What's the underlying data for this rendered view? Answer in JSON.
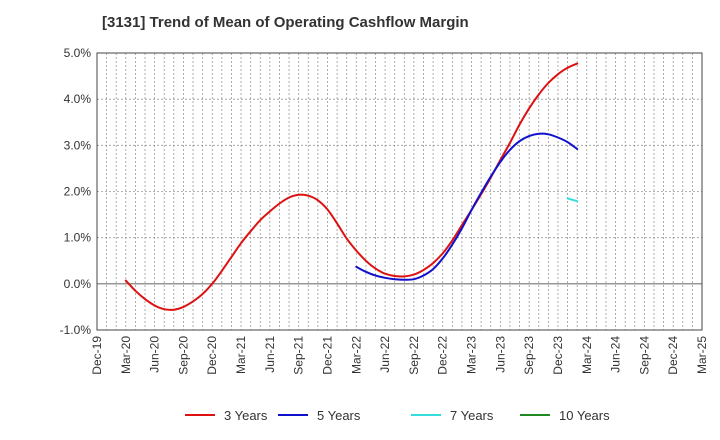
{
  "chart_data": {
    "type": "line",
    "title": "[3131]  Trend of Mean of Operating Cashflow Margin",
    "xlabel": "",
    "ylabel": "",
    "ylim": [
      -1.0,
      5.0
    ],
    "yticks": [
      "5.0%",
      "4.0%",
      "3.0%",
      "2.0%",
      "1.0%",
      "0.0%",
      "-1.0%"
    ],
    "ytick_values": [
      5,
      4,
      3,
      2,
      1,
      0,
      -1
    ],
    "categories": [
      "Dec-19",
      "Mar-20",
      "Jun-20",
      "Sep-20",
      "Dec-20",
      "Mar-21",
      "Jun-21",
      "Sep-21",
      "Dec-21",
      "Mar-22",
      "Jun-22",
      "Sep-22",
      "Dec-22",
      "Mar-23",
      "Jun-23",
      "Sep-23",
      "Dec-23",
      "Mar-24",
      "Jun-24",
      "Sep-24",
      "Dec-24",
      "Mar-25"
    ],
    "grid": true,
    "legend_position": "bottom",
    "series": [
      {
        "name": "3 Years",
        "color": "#dd1111",
        "points": [
          [
            "Mar-20",
            0.07
          ],
          [
            "Apr-20",
            -0.15
          ],
          [
            "May-20",
            -0.33
          ],
          [
            "Jun-20",
            -0.47
          ],
          [
            "Jul-20",
            -0.55
          ],
          [
            "Aug-20",
            -0.56
          ],
          [
            "Sep-20",
            -0.5
          ],
          [
            "Oct-20",
            -0.38
          ],
          [
            "Nov-20",
            -0.22
          ],
          [
            "Dec-20",
            0.0
          ],
          [
            "Jan-21",
            0.28
          ],
          [
            "Feb-21",
            0.58
          ],
          [
            "Mar-21",
            0.88
          ],
          [
            "Apr-21",
            1.14
          ],
          [
            "May-21",
            1.38
          ],
          [
            "Jun-21",
            1.57
          ],
          [
            "Jul-21",
            1.74
          ],
          [
            "Aug-21",
            1.87
          ],
          [
            "Sep-21",
            1.93
          ],
          [
            "Oct-21",
            1.91
          ],
          [
            "Nov-21",
            1.81
          ],
          [
            "Dec-21",
            1.61
          ],
          [
            "Jan-22",
            1.31
          ],
          [
            "Feb-22",
            0.98
          ],
          [
            "Mar-22",
            0.72
          ],
          [
            "Apr-22",
            0.5
          ],
          [
            "May-22",
            0.33
          ],
          [
            "Jun-22",
            0.22
          ],
          [
            "Jul-22",
            0.17
          ],
          [
            "Aug-22",
            0.16
          ],
          [
            "Sep-22",
            0.2
          ],
          [
            "Oct-22",
            0.3
          ],
          [
            "Nov-22",
            0.45
          ],
          [
            "Dec-22",
            0.66
          ],
          [
            "Jan-23",
            0.94
          ],
          [
            "Feb-23",
            1.27
          ],
          [
            "Mar-23",
            1.6
          ],
          [
            "Apr-23",
            1.94
          ],
          [
            "May-23",
            2.3
          ],
          [
            "Jun-23",
            2.68
          ],
          [
            "Jul-23",
            3.05
          ],
          [
            "Aug-23",
            3.45
          ],
          [
            "Sep-23",
            3.8
          ],
          [
            "Oct-23",
            4.1
          ],
          [
            "Nov-23",
            4.35
          ],
          [
            "Dec-23",
            4.54
          ],
          [
            "Jan-24",
            4.68
          ],
          [
            "Feb-24",
            4.77
          ]
        ]
      },
      {
        "name": "5 Years",
        "color": "#1111cc",
        "points": [
          [
            "Mar-22",
            0.37
          ],
          [
            "Apr-22",
            0.26
          ],
          [
            "May-22",
            0.18
          ],
          [
            "Jun-22",
            0.13
          ],
          [
            "Jul-22",
            0.1
          ],
          [
            "Aug-22",
            0.09
          ],
          [
            "Sep-22",
            0.1
          ],
          [
            "Oct-22",
            0.18
          ],
          [
            "Nov-22",
            0.32
          ],
          [
            "Dec-22",
            0.55
          ],
          [
            "Jan-23",
            0.85
          ],
          [
            "Feb-23",
            1.2
          ],
          [
            "Mar-23",
            1.6
          ],
          [
            "Apr-23",
            1.97
          ],
          [
            "May-23",
            2.32
          ],
          [
            "Jun-23",
            2.64
          ],
          [
            "Jul-23",
            2.9
          ],
          [
            "Aug-23",
            3.09
          ],
          [
            "Sep-23",
            3.2
          ],
          [
            "Oct-23",
            3.25
          ],
          [
            "Nov-23",
            3.24
          ],
          [
            "Dec-23",
            3.17
          ],
          [
            "Jan-24",
            3.07
          ],
          [
            "Feb-24",
            2.92
          ]
        ]
      },
      {
        "name": "7 Years",
        "color": "#33dddd",
        "points": [
          [
            "Jan-24",
            1.85
          ],
          [
            "Feb-24",
            1.79
          ]
        ]
      },
      {
        "name": "10 Years",
        "color": "#228822",
        "points": []
      }
    ]
  }
}
